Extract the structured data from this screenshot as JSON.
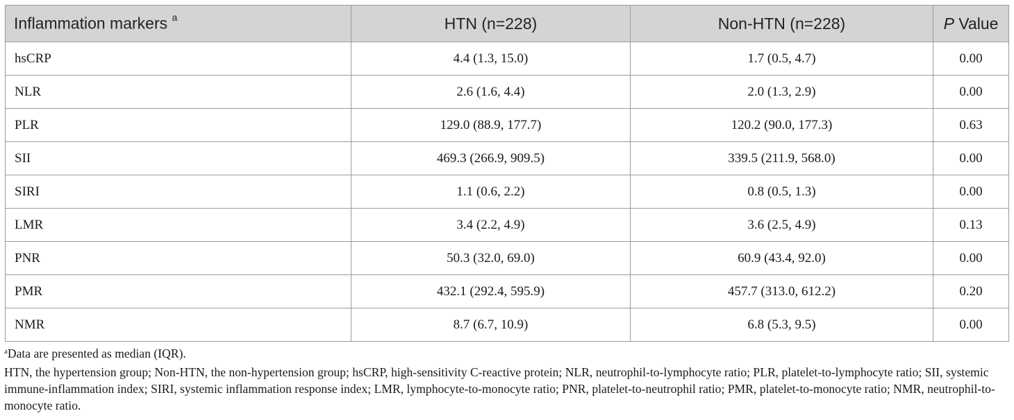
{
  "table": {
    "headers": {
      "marker": "Inflammation markers",
      "marker_sup": "a",
      "htn": "HTN (n=228)",
      "non_htn": "Non-HTN (n=228)",
      "p_italic": "P",
      "p_rest": " Value"
    },
    "rows": [
      {
        "marker": "hsCRP",
        "htn": "4.4 (1.3, 15.0)",
        "non_htn": "1.7 (0.5, 4.7)",
        "p": "0.00"
      },
      {
        "marker": "NLR",
        "htn": "2.6 (1.6, 4.4)",
        "non_htn": "2.0 (1.3, 2.9)",
        "p": "0.00"
      },
      {
        "marker": "PLR",
        "htn": "129.0 (88.9, 177.7)",
        "non_htn": "120.2 (90.0, 177.3)",
        "p": "0.63"
      },
      {
        "marker": "SII",
        "htn": "469.3 (266.9, 909.5)",
        "non_htn": "339.5 (211.9, 568.0)",
        "p": "0.00"
      },
      {
        "marker": "SIRI",
        "htn": "1.1 (0.6, 2.2)",
        "non_htn": "0.8 (0.5, 1.3)",
        "p": "0.00"
      },
      {
        "marker": "LMR",
        "htn": "3.4 (2.2, 4.9)",
        "non_htn": "3.6 (2.5, 4.9)",
        "p": "0.13"
      },
      {
        "marker": "PNR",
        "htn": "50.3 (32.0, 69.0)",
        "non_htn": "60.9 (43.4, 92.0)",
        "p": "0.00"
      },
      {
        "marker": "PMR",
        "htn": "432.1 (292.4, 595.9)",
        "non_htn": "457.7 (313.0, 612.2)",
        "p": "0.20"
      },
      {
        "marker": "NMR",
        "htn": "8.7 (6.7, 10.9)",
        "non_htn": "6.8 (5.3, 9.5)",
        "p": "0.00"
      }
    ]
  },
  "footnotes": {
    "note_a_sup": "a",
    "note_a": "Data are presented as median (IQR).",
    "abbreviations": "HTN, the hypertension group; Non-HTN, the non-hypertension group; hsCRP, high-sensitivity C-reactive protein; NLR, neutrophil-to-lymphocyte ratio; PLR, platelet-to-lymphocyte ratio; SII, systemic immune-inflammation index; SIRI, systemic inflammation response index; LMR, lymphocyte-to-monocyte ratio; PNR, platelet-to-neutrophil ratio; PMR, platelet-to-monocyte ratio; NMR, neutrophil-to-monocyte ratio."
  },
  "colors": {
    "header_bg": "#d4d4d4",
    "border": "#9a9a9a"
  }
}
